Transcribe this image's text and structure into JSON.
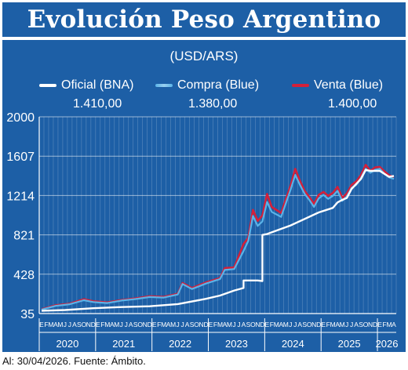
{
  "header": {
    "title": "Evolución Peso Argentino"
  },
  "chart_data": {
    "type": "line",
    "subtitle": "(USD/ARS)",
    "ylim": [
      35,
      2000
    ],
    "yticks": [
      35,
      428,
      821,
      1214,
      1607,
      2000
    ],
    "grid": true,
    "legend_position": "top",
    "month_letters": [
      "E",
      "F",
      "M",
      "A",
      "M",
      "J",
      "J",
      "A",
      "S",
      "O",
      "N",
      "D"
    ],
    "years": [
      "2020",
      "2021",
      "2022",
      "2023",
      "2024",
      "2025",
      "2026"
    ],
    "last_year_months": 4,
    "series": [
      {
        "name": "Oficial (BNA)",
        "color": "#ffffff",
        "last_value": "1.410,00",
        "points": [
          [
            "2020-01",
            63
          ],
          [
            "2020-06",
            70
          ],
          [
            "2020-12",
            88
          ],
          [
            "2021-06",
            100
          ],
          [
            "2021-12",
            108
          ],
          [
            "2022-06",
            130
          ],
          [
            "2022-12",
            182
          ],
          [
            "2023-03",
            215
          ],
          [
            "2023-06",
            265
          ],
          [
            "2023-08",
            290
          ],
          [
            "2023-08",
            365
          ],
          [
            "2023-11",
            365
          ],
          [
            "2023-12",
            360
          ],
          [
            "2023-12",
            820
          ],
          [
            "2024-01",
            830
          ],
          [
            "2024-06",
            915
          ],
          [
            "2024-12",
            1045
          ],
          [
            "2025-03",
            1090
          ],
          [
            "2025-04",
            1145
          ],
          [
            "2025-05",
            1170
          ],
          [
            "2025-06",
            1190
          ],
          [
            "2025-07",
            1280
          ],
          [
            "2025-08",
            1330
          ],
          [
            "2025-09",
            1380
          ],
          [
            "2025-10",
            1470
          ],
          [
            "2025-11",
            1460
          ],
          [
            "2025-12",
            1460
          ],
          [
            "2026-01",
            1460
          ],
          [
            "2026-02",
            1430
          ],
          [
            "2026-03",
            1400
          ],
          [
            "2026-04",
            1410
          ]
        ]
      },
      {
        "name": "Compra (Blue)",
        "color": "#5ab3e8",
        "last_value": "1.380,00",
        "points": [
          [
            "2020-01",
            74
          ],
          [
            "2020-04",
            112
          ],
          [
            "2020-07",
            128
          ],
          [
            "2020-10",
            168
          ],
          [
            "2020-12",
            150
          ],
          [
            "2021-03",
            140
          ],
          [
            "2021-06",
            165
          ],
          [
            "2021-09",
            180
          ],
          [
            "2021-12",
            200
          ],
          [
            "2022-03",
            195
          ],
          [
            "2022-06",
            225
          ],
          [
            "2022-07",
            330
          ],
          [
            "2022-09",
            280
          ],
          [
            "2022-12",
            335
          ],
          [
            "2023-03",
            380
          ],
          [
            "2023-04",
            470
          ],
          [
            "2023-06",
            480
          ],
          [
            "2023-08",
            660
          ],
          [
            "2023-09",
            760
          ],
          [
            "2023-10",
            1010
          ],
          [
            "2023-11",
            910
          ],
          [
            "2023-12",
            955
          ],
          [
            "2024-01",
            1150
          ],
          [
            "2024-02",
            1050
          ],
          [
            "2024-04",
            1000
          ],
          [
            "2024-06",
            1270
          ],
          [
            "2024-07",
            1420
          ],
          [
            "2024-08",
            1320
          ],
          [
            "2024-09",
            1230
          ],
          [
            "2024-10",
            1170
          ],
          [
            "2024-11",
            1100
          ],
          [
            "2024-12",
            1185
          ],
          [
            "2025-01",
            1220
          ],
          [
            "2025-02",
            1180
          ],
          [
            "2025-03",
            1210
          ],
          [
            "2025-04",
            1260
          ],
          [
            "2025-05",
            1160
          ],
          [
            "2025-06",
            1205
          ],
          [
            "2025-07",
            1290
          ],
          [
            "2025-08",
            1320
          ],
          [
            "2025-09",
            1390
          ],
          [
            "2025-10",
            1480
          ],
          [
            "2025-11",
            1440
          ],
          [
            "2025-12",
            1470
          ],
          [
            "2026-01",
            1480
          ],
          [
            "2026-02",
            1430
          ],
          [
            "2026-03",
            1395
          ],
          [
            "2026-04",
            1380
          ]
        ]
      },
      {
        "name": "Venta (Blue)",
        "color": "#d3203a",
        "last_value": "1.400,00",
        "points": [
          [
            "2020-01",
            78
          ],
          [
            "2020-04",
            118
          ],
          [
            "2020-07",
            134
          ],
          [
            "2020-10",
            178
          ],
          [
            "2020-12",
            158
          ],
          [
            "2021-03",
            146
          ],
          [
            "2021-06",
            170
          ],
          [
            "2021-09",
            186
          ],
          [
            "2021-12",
            208
          ],
          [
            "2022-03",
            202
          ],
          [
            "2022-06",
            232
          ],
          [
            "2022-07",
            340
          ],
          [
            "2022-09",
            290
          ],
          [
            "2022-12",
            346
          ],
          [
            "2023-03",
            390
          ],
          [
            "2023-04",
            490
          ],
          [
            "2023-06",
            495
          ],
          [
            "2023-08",
            730
          ],
          [
            "2023-09",
            790
          ],
          [
            "2023-10",
            1070
          ],
          [
            "2023-11",
            960
          ],
          [
            "2023-12",
            1015
          ],
          [
            "2024-01",
            1230
          ],
          [
            "2024-02",
            1100
          ],
          [
            "2024-04",
            1040
          ],
          [
            "2024-06",
            1310
          ],
          [
            "2024-07",
            1480
          ],
          [
            "2024-08",
            1360
          ],
          [
            "2024-09",
            1260
          ],
          [
            "2024-10",
            1200
          ],
          [
            "2024-11",
            1130
          ],
          [
            "2024-12",
            1220
          ],
          [
            "2025-01",
            1250
          ],
          [
            "2025-02",
            1210
          ],
          [
            "2025-03",
            1240
          ],
          [
            "2025-04",
            1300
          ],
          [
            "2025-05",
            1190
          ],
          [
            "2025-06",
            1235
          ],
          [
            "2025-07",
            1320
          ],
          [
            "2025-08",
            1355
          ],
          [
            "2025-09",
            1420
          ],
          [
            "2025-10",
            1520
          ],
          [
            "2025-11",
            1460
          ],
          [
            "2025-12",
            1495
          ],
          [
            "2026-01",
            1500
          ],
          [
            "2026-02",
            1455
          ],
          [
            "2026-03",
            1415
          ],
          [
            "2026-04",
            1400
          ]
        ]
      }
    ]
  },
  "footer": {
    "text": "Al: 30/04/2026. Fuente: Ámbito."
  }
}
